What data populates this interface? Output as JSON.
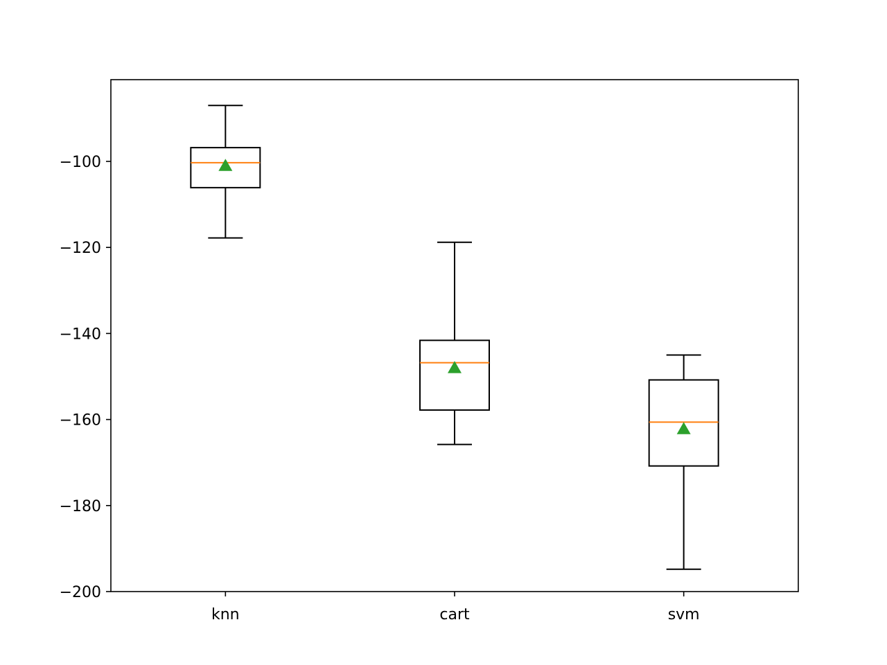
{
  "chart_data": {
    "type": "box",
    "title": "",
    "xlabel": "",
    "ylabel": "",
    "ylim": [
      -200,
      -81
    ],
    "yticks": [
      -100,
      -120,
      -140,
      -160,
      -180,
      -200
    ],
    "ytick_labels": [
      "−100",
      "−120",
      "−140",
      "−160",
      "−180",
      "−200"
    ],
    "categories": [
      "knn",
      "cart",
      "svm"
    ],
    "boxes": [
      {
        "label": "knn",
        "whisker_low": -117.8,
        "q1": -106.1,
        "median": -100.3,
        "q3": -96.8,
        "whisker_high": -87.0,
        "mean": -101.0
      },
      {
        "label": "cart",
        "whisker_low": -165.8,
        "q1": -157.8,
        "median": -146.8,
        "q3": -141.6,
        "whisker_high": -118.8,
        "mean": -148.0
      },
      {
        "label": "svm",
        "whisker_low": -194.8,
        "q1": -170.8,
        "median": -160.6,
        "q3": -150.8,
        "whisker_high": -145.0,
        "mean": -162.2
      }
    ],
    "grid": false,
    "legend": "none",
    "colors": {
      "box": "#000000",
      "median": "#ff7f0e",
      "mean": "#2ca02c",
      "axes": "#000000"
    }
  }
}
